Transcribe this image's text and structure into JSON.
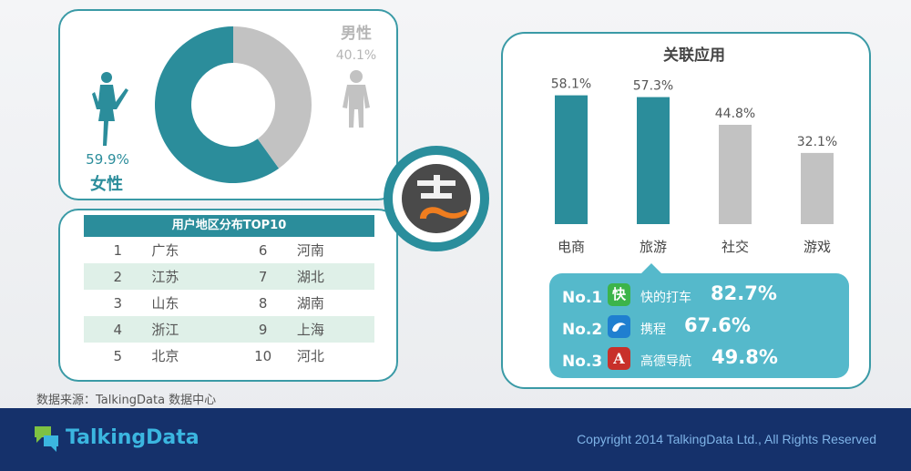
{
  "gender": {
    "male_label": "男性",
    "male_pct": "40.1%",
    "female_label": "女性",
    "female_pct": "59.9%"
  },
  "region": {
    "title": "用户地区分布TOP10",
    "rows": [
      {
        "rank_a": "1",
        "prov_a": "广东",
        "rank_b": "6",
        "prov_b": "河南"
      },
      {
        "rank_a": "2",
        "prov_a": "江苏",
        "rank_b": "7",
        "prov_b": "湖北"
      },
      {
        "rank_a": "3",
        "prov_a": "山东",
        "rank_b": "8",
        "prov_b": "湖南"
      },
      {
        "rank_a": "4",
        "prov_a": "浙江",
        "rank_b": "9",
        "prov_b": "上海"
      },
      {
        "rank_a": "5",
        "prov_a": "北京",
        "rank_b": "10",
        "prov_b": "河北"
      }
    ]
  },
  "apps": {
    "title": "关联应用",
    "top_apps": [
      {
        "no": "No.1",
        "icon_text": "快",
        "name": "快的打车",
        "value": "82.7%"
      },
      {
        "no": "No.2",
        "icon_text": "",
        "name": "携程",
        "value": "67.6%"
      },
      {
        "no": "No.3",
        "icon_text": "A",
        "name": "高德导航",
        "value": "49.8%"
      }
    ]
  },
  "source_note": "数据来源：TalkingData 数据中心",
  "footer": {
    "brand": "TalkingData",
    "copyright": "Copyright 2014 TalkingData Ltd., All Rights Reserved"
  },
  "colors": {
    "teal": "#2b8d9b",
    "gray": "#c2c2c2",
    "light_teal": "#55b9cb",
    "footer_bg": "#15316b"
  },
  "chart_data": [
    {
      "type": "pie",
      "categories": [
        "女性",
        "男性"
      ],
      "values": [
        59.9,
        40.1
      ],
      "value_labels": [
        "59.9%",
        "40.1%"
      ],
      "title": ""
    },
    {
      "type": "bar",
      "title": "关联应用",
      "categories": [
        "电商",
        "旅游",
        "社交",
        "游戏"
      ],
      "values": [
        58.1,
        57.3,
        44.8,
        32.1
      ],
      "value_labels": [
        "58.1%",
        "57.3%",
        "44.8%",
        "32.1%"
      ],
      "ylim": [
        0,
        60
      ]
    }
  ]
}
